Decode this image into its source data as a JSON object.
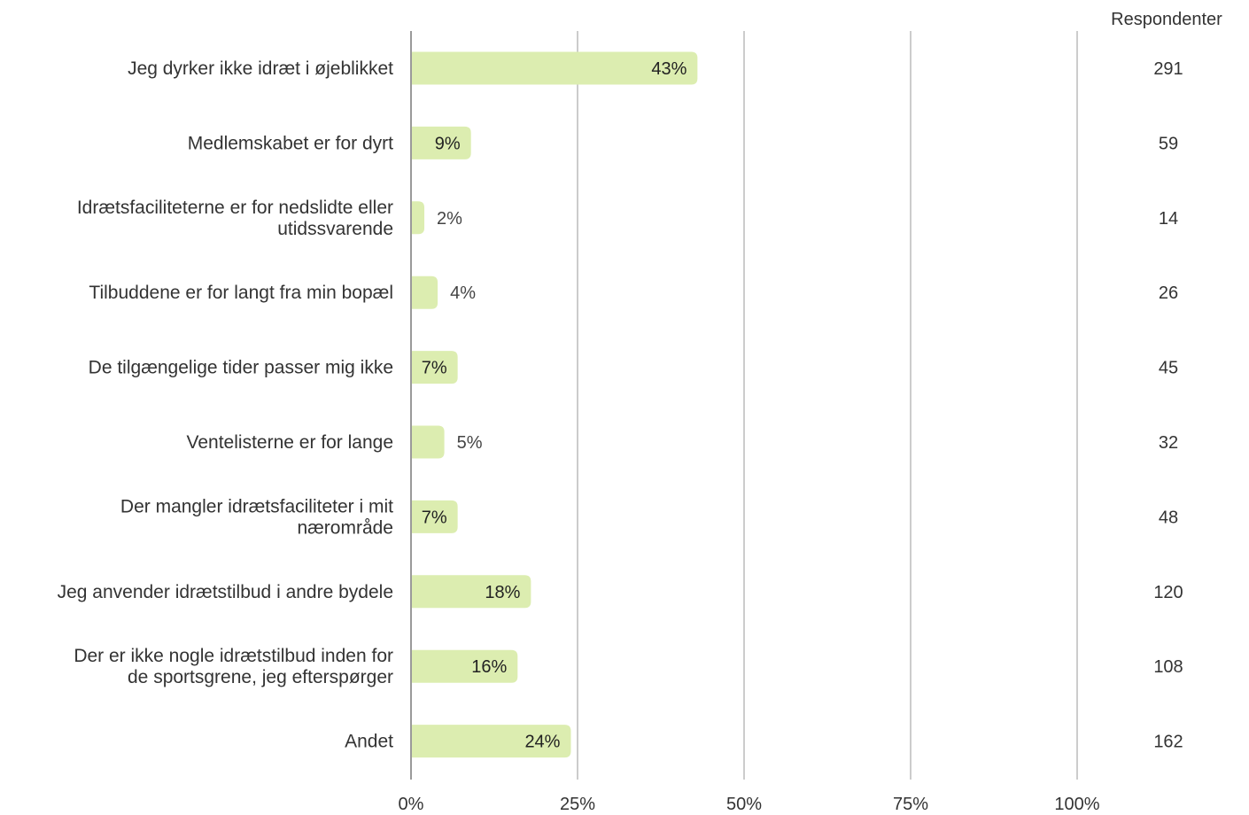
{
  "colors": {
    "bar": "#dcedb0",
    "grid": "#9a9a9a",
    "axis": "#9a9a9a",
    "text": "#333333"
  },
  "chart_data": {
    "type": "bar",
    "orientation": "horizontal",
    "categories": [
      [
        "Jeg dyrker ikke idræt i øjeblikket"
      ],
      [
        "Medlemskabet er for dyrt"
      ],
      [
        "Idrætsfaciliteterne er for nedslidte eller",
        "utidssvarende"
      ],
      [
        "Tilbuddene er for langt fra min bopæl"
      ],
      [
        "De tilgængelige tider passer mig ikke"
      ],
      [
        "Ventelisterne er for lange"
      ],
      [
        "Der mangler idrætsfaciliteter i mit",
        "nærområde"
      ],
      [
        "Jeg anvender idrætstilbud i andre bydele"
      ],
      [
        "Der er ikke nogle idrætstilbud inden for",
        "de sportsgrene, jeg efterspørger"
      ],
      [
        "Andet"
      ]
    ],
    "values": [
      43,
      9,
      2,
      4,
      7,
      5,
      7,
      18,
      16,
      24
    ],
    "value_labels": [
      "43%",
      "9%",
      "2%",
      "4%",
      "7%",
      "5%",
      "7%",
      "18%",
      "16%",
      "24%"
    ],
    "respondents_header": "Respondenter",
    "respondents": [
      "291",
      "59",
      "14",
      "26",
      "45",
      "32",
      "48",
      "120",
      "108",
      "162"
    ],
    "xlim": [
      0,
      100
    ],
    "xticks": [
      0,
      25,
      50,
      75,
      100
    ],
    "xtick_labels": [
      "0%",
      "25%",
      "50%",
      "75%",
      "100%"
    ],
    "grid": true,
    "title": "",
    "xlabel": "",
    "ylabel": ""
  }
}
